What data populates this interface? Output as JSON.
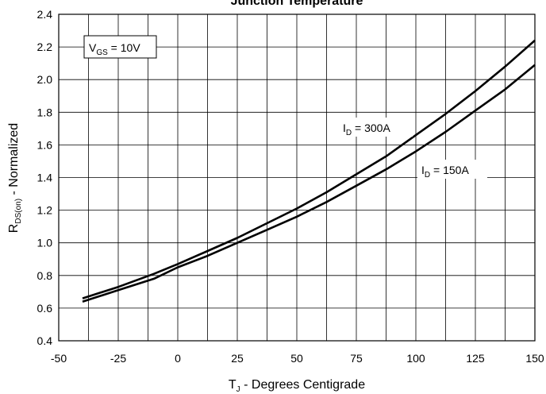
{
  "chart_data": {
    "type": "line",
    "title": "Junction Temperature",
    "xlabel": {
      "main": "T",
      "sub": "J",
      "rest": " - Degrees Centigrade"
    },
    "ylabel": {
      "main": "R",
      "sub": "DS(on)",
      "rest": " - Normalized"
    },
    "xlim": [
      -50,
      150
    ],
    "ylim": [
      0.4,
      2.4
    ],
    "x_ticks": [
      "-50",
      "-25",
      "0",
      "25",
      "50",
      "75",
      "100",
      "125",
      "150"
    ],
    "y_ticks": [
      "0.4",
      "0.6",
      "0.8",
      "1.0",
      "1.2",
      "1.4",
      "1.6",
      "1.8",
      "2.0",
      "2.2",
      "2.4"
    ],
    "x_minor_step": 12.5,
    "grid": true,
    "condition": {
      "main": "V",
      "sub": "GS",
      "rest": " = 10V"
    },
    "series": [
      {
        "name": {
          "main": "I",
          "sub": "D",
          "rest": " = 300A"
        },
        "x": [
          -40,
          -25,
          -10,
          0,
          12.5,
          25,
          37.5,
          50,
          62.5,
          75,
          87.5,
          100,
          112.5,
          125,
          137.5,
          150
        ],
        "y": [
          0.66,
          0.73,
          0.81,
          0.87,
          0.95,
          1.03,
          1.12,
          1.21,
          1.31,
          1.42,
          1.53,
          1.66,
          1.79,
          1.93,
          2.08,
          2.24
        ]
      },
      {
        "name": {
          "main": "I",
          "sub": "D",
          "rest": " = 150A"
        },
        "x": [
          -40,
          -25,
          -10,
          0,
          12.5,
          25,
          37.5,
          50,
          62.5,
          75,
          87.5,
          100,
          112.5,
          125,
          137.5,
          150
        ],
        "y": [
          0.64,
          0.71,
          0.78,
          0.85,
          0.92,
          1.0,
          1.08,
          1.16,
          1.25,
          1.35,
          1.45,
          1.56,
          1.68,
          1.81,
          1.94,
          2.09
        ]
      }
    ]
  }
}
